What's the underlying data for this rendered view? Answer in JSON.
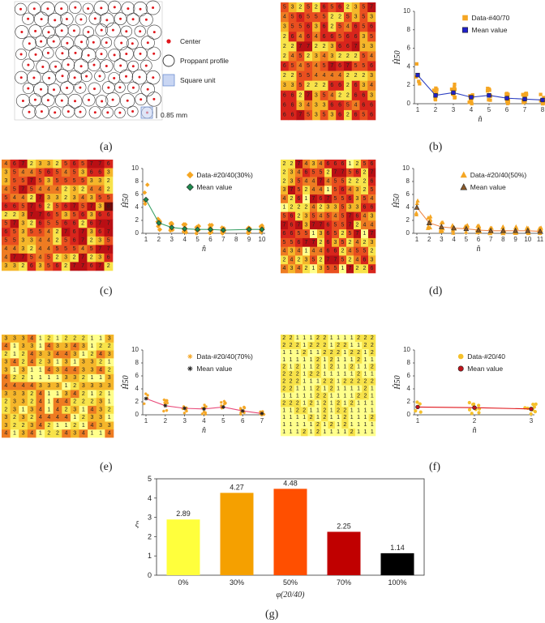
{
  "captions": {
    "a": "(a)",
    "b": "(b)",
    "c": "(c)",
    "d": "(d)",
    "e": "(e)",
    "f": "(f)",
    "g": "(g)"
  },
  "panel_a": {
    "legend": [
      "Center",
      "Proppant profile",
      "Square unit"
    ],
    "scale": "0.85 mm",
    "colors": {
      "center": "#e0161b",
      "circle": "#333333",
      "square": "#6f8fd1"
    }
  },
  "heatmap_colors": [
    "#ffff8c",
    "#f8e34a",
    "#f5b62a",
    "#ee7c22",
    "#e94f1f",
    "#d8251c",
    "#b90f14",
    "#6e0b0b",
    "#1d0000"
  ],
  "chart_data": [
    {
      "panel": "b",
      "type": "scatter",
      "ylabel": "Ĥ50",
      "xlabel": "n̂",
      "ylim": [
        0,
        10
      ],
      "xlim": [
        1,
        8
      ],
      "legend": [
        "Data-#40/70",
        "Mean value"
      ],
      "mean": [
        [
          1,
          3.1
        ],
        [
          2,
          0.9
        ],
        [
          3,
          1.2
        ],
        [
          4,
          0.7
        ],
        [
          5,
          0.9
        ],
        [
          6,
          0.6
        ],
        [
          7,
          0.5
        ],
        [
          8,
          0.4
        ]
      ],
      "colors": {
        "data": "#f5a623",
        "mean": "#2d3fc2",
        "marker": "#2020c8"
      },
      "data_shape": "square",
      "mean_shape": "square"
    },
    {
      "panel": "c",
      "type": "scatter",
      "ylabel": "Ĥ50",
      "xlabel": "n̂",
      "ylim": [
        0,
        10
      ],
      "xlim": [
        1,
        10
      ],
      "legend": [
        "Data-#20/40(30%)",
        "Mean value"
      ],
      "mean": [
        [
          1,
          5.2
        ],
        [
          2,
          1.6
        ],
        [
          3,
          0.9
        ],
        [
          4,
          0.7
        ],
        [
          5,
          0.6
        ],
        [
          6,
          0.6
        ],
        [
          7,
          0.5
        ],
        [
          9,
          0.6
        ],
        [
          10,
          0.6
        ]
      ],
      "colors": {
        "data": "#f5a623",
        "mean": "#3da36a",
        "marker": "#1e8a4e"
      },
      "data_shape": "diamond",
      "mean_shape": "diamond"
    },
    {
      "panel": "d",
      "type": "scatter",
      "ylabel": "Ĥ50",
      "xlabel": "n̂",
      "ylim": [
        0,
        10
      ],
      "xlim": [
        1,
        11
      ],
      "legend": [
        "Data-#20/40(50%)",
        "Mean value"
      ],
      "mean": [
        [
          1,
          4.0
        ],
        [
          2,
          1.6
        ],
        [
          3,
          1.0
        ],
        [
          4,
          0.8
        ],
        [
          5,
          0.7
        ],
        [
          6,
          0.5
        ],
        [
          7,
          0.4
        ],
        [
          8,
          0.4
        ],
        [
          9,
          0.4
        ],
        [
          10,
          0.4
        ],
        [
          11,
          0.3
        ]
      ],
      "colors": {
        "data": "#f5a623",
        "mean": "#f08a4b",
        "marker": "#8a5a2a"
      },
      "data_shape": "triangle",
      "mean_shape": "triangle"
    },
    {
      "panel": "e",
      "type": "scatter",
      "ylabel": "Ĥ50",
      "xlabel": "n̂",
      "ylim": [
        0,
        10
      ],
      "xlim": [
        1,
        7
      ],
      "legend": [
        "Data-#20/40(70%)",
        "Mean value"
      ],
      "mean": [
        [
          1,
          2.5
        ],
        [
          2,
          1.4
        ],
        [
          3,
          1.0
        ],
        [
          4,
          0.9
        ],
        [
          5,
          1.2
        ],
        [
          6,
          0.6
        ],
        [
          7,
          0.2
        ]
      ],
      "colors": {
        "data": "#f5a623",
        "mean": "#e94b7a",
        "marker": "#e23b8a"
      },
      "data_shape": "star",
      "mean_shape": "star"
    },
    {
      "panel": "f",
      "type": "scatter",
      "ylabel": "Ĥ50",
      "xlabel": "n̂",
      "ylim": [
        0,
        10
      ],
      "xlim": [
        1,
        3
      ],
      "legend": [
        "Data-#20/40",
        "Mean value"
      ],
      "mean": [
        [
          1,
          1.2
        ],
        [
          2,
          1.1
        ],
        [
          3,
          0.9
        ]
      ],
      "colors": {
        "data": "#f5c02a",
        "mean": "#e0161b",
        "marker": "#c0141b"
      },
      "data_shape": "circle",
      "mean_shape": "circle"
    },
    {
      "panel": "g",
      "type": "bar",
      "xlabel": "φ(20/40)",
      "ylabel": "ξ",
      "ylim": [
        0,
        5
      ],
      "categories": [
        "0%",
        "30%",
        "50%",
        "70%",
        "100%"
      ],
      "values": [
        2.89,
        4.27,
        4.48,
        2.25,
        1.14
      ],
      "labels": [
        "2.89",
        "4.27",
        "4.48",
        "2.25",
        "1.14"
      ],
      "colors": [
        "#ffff3c",
        "#f5a000",
        "#ff4f00",
        "#c00000",
        "#000000"
      ],
      "yticks": [
        "0",
        "1",
        "2",
        "3",
        "4",
        "5"
      ]
    }
  ]
}
